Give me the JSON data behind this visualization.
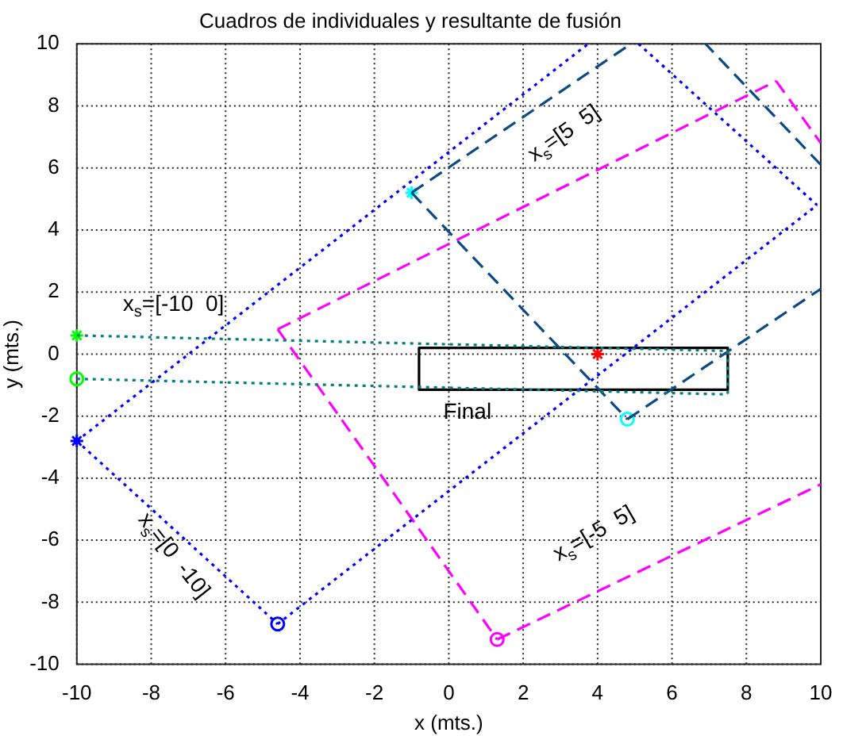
{
  "chart_data": {
    "type": "line",
    "title": "Cuadros de individuales y resultante de fusión",
    "xlabel": "x (mts.)",
    "ylabel": "y (mts.)",
    "xlim": [
      -10,
      10
    ],
    "ylim": [
      -10,
      10
    ],
    "xticks": [
      -10,
      -8,
      -6,
      -4,
      -2,
      0,
      2,
      4,
      6,
      8,
      10
    ],
    "yticks": [
      -10,
      -8,
      -6,
      -4,
      -2,
      0,
      2,
      4,
      6,
      8,
      10
    ],
    "grid": true,
    "series": [
      {
        "type": "line",
        "color": "#008080",
        "line_style": "dotted",
        "marker": "none",
        "x": [
          -10,
          7.5
        ],
        "values": [
          0.6,
          0.1
        ]
      },
      {
        "type": "line",
        "color": "#008080",
        "line_style": "dotted",
        "marker": "none",
        "x": [
          7.5,
          7.5
        ],
        "values": [
          0.1,
          -1.3
        ]
      },
      {
        "type": "line",
        "color": "#008080",
        "line_style": "dotted",
        "marker": "none",
        "x": [
          -10,
          7.5
        ],
        "values": [
          -0.8,
          -1.3
        ]
      },
      {
        "type": "scatter",
        "color": "#00ff00",
        "marker": "cross",
        "x": [
          -10
        ],
        "values": [
          0.6
        ]
      },
      {
        "type": "scatter",
        "color": "#00ff00",
        "marker": "circle",
        "x": [
          -10
        ],
        "values": [
          -0.8
        ]
      },
      {
        "type": "line",
        "color": "#0000ff",
        "line_style": "dotted",
        "marker": "none",
        "x": [
          -10,
          3.75
        ],
        "values": [
          -2.8,
          10
        ]
      },
      {
        "type": "line",
        "color": "#0000ff",
        "line_style": "dotted",
        "marker": "none",
        "x": [
          5.1,
          9.9
        ],
        "values": [
          10,
          4.8
        ]
      },
      {
        "type": "line",
        "color": "#0000ff",
        "line_style": "dotted",
        "marker": "none",
        "x": [
          -4.6,
          9.9
        ],
        "values": [
          -8.7,
          4.8
        ]
      },
      {
        "type": "line",
        "color": "#0000ff",
        "line_style": "dotted",
        "marker": "none",
        "x": [
          -10,
          -4.6
        ],
        "values": [
          -2.8,
          -8.7
        ]
      },
      {
        "type": "scatter",
        "color": "#0000ff",
        "marker": "cross",
        "x": [
          -10
        ],
        "values": [
          -2.8
        ]
      },
      {
        "type": "scatter",
        "color": "#0000ff",
        "marker": "circle",
        "x": [
          -4.6
        ],
        "values": [
          -8.7
        ]
      },
      {
        "type": "line",
        "color": "#0b4a85",
        "line_style": "dashed",
        "marker": "none",
        "x": [
          10,
          6.9
        ],
        "values": [
          6.1,
          10
        ]
      },
      {
        "type": "line",
        "color": "#0b4a85",
        "line_style": "dashed",
        "marker": "none",
        "x": [
          -1,
          4.9
        ],
        "values": [
          5.2,
          10
        ]
      },
      {
        "type": "line",
        "color": "#0b4a85",
        "line_style": "dashed",
        "marker": "none",
        "x": [
          -1,
          4.8
        ],
        "values": [
          5.2,
          -2.1
        ]
      },
      {
        "type": "line",
        "color": "#0b4a85",
        "line_style": "dashed",
        "marker": "none",
        "x": [
          4.8,
          10
        ],
        "values": [
          -2.1,
          2.1
        ]
      },
      {
        "type": "scatter",
        "color": "#00ffff",
        "marker": "cross",
        "x": [
          -1
        ],
        "values": [
          5.2
        ]
      },
      {
        "type": "scatter",
        "color": "#00ffff",
        "marker": "circle",
        "x": [
          4.8
        ],
        "values": [
          -2.1
        ]
      },
      {
        "type": "line",
        "color": "#ff00ff",
        "line_style": "dashed",
        "marker": "none",
        "x": [
          8.8,
          10
        ],
        "values": [
          8.8,
          6.8
        ]
      },
      {
        "type": "line",
        "color": "#ff00ff",
        "line_style": "dashed",
        "marker": "none",
        "x": [
          -4.6,
          8.8
        ],
        "values": [
          0.8,
          8.8
        ]
      },
      {
        "type": "line",
        "color": "#ff00ff",
        "line_style": "dashed",
        "marker": "none",
        "x": [
          -4.6,
          1.3
        ],
        "values": [
          0.8,
          -9.2
        ]
      },
      {
        "type": "line",
        "color": "#ff00ff",
        "line_style": "dashed",
        "marker": "none",
        "x": [
          1.3,
          10
        ],
        "values": [
          -9.2,
          -4.2
        ]
      },
      {
        "type": "scatter",
        "color": "#ff00ff",
        "marker": "circle",
        "x": [
          1.3
        ],
        "values": [
          -9.2
        ]
      },
      {
        "type": "line",
        "color": "#000000",
        "line_style": "solid",
        "marker": "none",
        "x": [
          -0.8,
          7.5
        ],
        "values": [
          0.2,
          0.2
        ]
      },
      {
        "type": "line",
        "color": "#000000",
        "line_style": "solid",
        "marker": "none",
        "x": [
          -0.8,
          7.5
        ],
        "values": [
          -1.15,
          -1.15
        ]
      },
      {
        "type": "line",
        "color": "#000000",
        "line_style": "solid",
        "marker": "none",
        "x": [
          -0.8,
          -0.8
        ],
        "values": [
          0.2,
          -1.15
        ]
      },
      {
        "type": "line",
        "color": "#000000",
        "line_style": "solid",
        "marker": "none",
        "x": [
          7.5,
          7.5
        ],
        "values": [
          0.2,
          -1.15
        ]
      },
      {
        "type": "scatter",
        "color": "#ff0000",
        "marker": "cross",
        "x": [
          4
        ],
        "values": [
          0
        ]
      }
    ],
    "annotations": [
      "Final",
      "x$_{s}$=[-10  0]",
      "x$_{s}$=[5  5]",
      "x$_{s}$=[0  -10]",
      "x$_{s}$=[-5  5]"
    ]
  }
}
